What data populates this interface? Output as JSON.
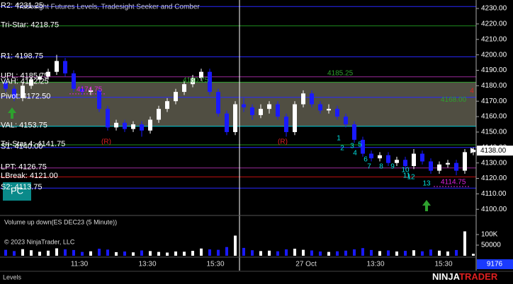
{
  "chart_data": {
    "type": "candlestick",
    "title": "Tradesight Futures Levels, Tradesight Seeker and Comber",
    "ylim": [
      4096,
      4235.5
    ],
    "yticks": [
      {
        "value": 4100,
        "label": "4100.00"
      },
      {
        "value": 4110,
        "label": "4110.00"
      },
      {
        "value": 4120,
        "label": "4120.00"
      },
      {
        "value": 4130,
        "label": "4130.00"
      },
      {
        "value": 4140,
        "label": "4140.00"
      },
      {
        "value": 4150,
        "label": "4150.00"
      },
      {
        "value": 4160,
        "label": "4160.00"
      },
      {
        "value": 4170,
        "label": "4170.00"
      },
      {
        "value": 4180,
        "label": "4180.00"
      },
      {
        "value": 4190,
        "label": "4190.00"
      },
      {
        "value": 4200,
        "label": "4200.00"
      },
      {
        "value": 4210,
        "label": "4210.00"
      },
      {
        "value": 4220,
        "label": "4220.00"
      },
      {
        "value": 4230,
        "label": "4230.00"
      }
    ],
    "xtick_labels": [
      "11:30",
      "13:30",
      "15:30",
      "27 Oct",
      "13:30",
      "15:30"
    ],
    "up_color": "#ffffff",
    "down_color": "#1a1aff",
    "open": [
      4182,
      4178,
      4172,
      4180,
      4184,
      4186,
      4189,
      4196,
      4188,
      4178,
      4176,
      4177,
      4165,
      4153,
      4156,
      4152,
      4155,
      4151,
      4158,
      4165,
      4170,
      4176,
      4181,
      4185,
      4189,
      4176,
      4162,
      4150,
      4168,
      4166,
      4161,
      4165,
      4168,
      4160,
      4150,
      4168,
      4175,
      4168,
      4164,
      4165,
      4160,
      4155,
      4145,
      4136,
      4133,
      4135,
      4130,
      4132,
      4128,
      4136,
      4131,
      4125,
      4129,
      4130,
      4125,
      4137
    ],
    "high": [
      4184,
      4180,
      4182,
      4186,
      4188,
      4191,
      4200,
      4198,
      4190,
      4180,
      4179,
      4179,
      4167,
      4158,
      4158,
      4157,
      4157,
      4160,
      4167,
      4172,
      4178,
      4183,
      4187,
      4191,
      4191,
      4178,
      4164,
      4170,
      4172,
      4168,
      4168,
      4170,
      4170,
      4162,
      4170,
      4177,
      4177,
      4170,
      4168,
      4167,
      4162,
      4157,
      4147,
      4138,
      4137,
      4137,
      4134,
      4134,
      4139,
      4138,
      4133,
      4131,
      4132,
      4132,
      4139,
      4140
    ],
    "low": [
      4176,
      4170,
      4170,
      4178,
      4182,
      4184,
      4187,
      4186,
      4176,
      4174,
      4174,
      4163,
      4151,
      4151,
      4150,
      4150,
      4147,
      4149,
      4156,
      4163,
      4168,
      4174,
      4179,
      4183,
      4174,
      4160,
      4148,
      4148,
      4163,
      4158,
      4159,
      4162,
      4158,
      4147,
      4148,
      4166,
      4166,
      4162,
      4162,
      4158,
      4153,
      4143,
      4134,
      4131,
      4131,
      4128,
      4128,
      4126,
      4126,
      4129,
      4123,
      4123,
      4127,
      4122,
      4123,
      4135
    ],
    "close": [
      4178,
      4172,
      4180,
      4184,
      4186,
      4189,
      4196,
      4188,
      4178,
      4176,
      4177,
      4165,
      4153,
      4156,
      4152,
      4155,
      4151,
      4158,
      4165,
      4170,
      4176,
      4181,
      4185,
      4189,
      4176,
      4162,
      4150,
      4168,
      4166,
      4161,
      4165,
      4168,
      4160,
      4150,
      4168,
      4175,
      4168,
      4164,
      4165,
      4160,
      4155,
      4145,
      4136,
      4133,
      4135,
      4130,
      4132,
      4128,
      4136,
      4131,
      4125,
      4129,
      4130,
      4125,
      4137,
      4138
    ],
    "last_price": {
      "value": 4138,
      "label": "4138.00"
    },
    "levels": [
      {
        "label": "R2: 4231.25",
        "value": 4231.25,
        "color": "#2828ff"
      },
      {
        "label": "Tri-Star: 4218.75",
        "value": 4218.75,
        "color": "#1e8c1e"
      },
      {
        "label": "R1: 4198.75",
        "value": 4198.75,
        "color": "#2828ff"
      },
      {
        "label": "UPL: 4185.75",
        "value": 4185.75,
        "color": "#9a2a9a"
      },
      {
        "label": "VAH: 4182.25",
        "value": 4182.25,
        "color": "#2ea02e"
      },
      {
        "label": "Pivot: 4172.50",
        "value": 4172.5,
        "color": "#2828ff"
      },
      {
        "label": "VAL: 4153.75",
        "value": 4153.75,
        "color": "#00c8d8"
      },
      {
        "label": "Tri-Star 4: 4141.75",
        "value": 4141.75,
        "color": "#1e8c1e"
      },
      {
        "label": "S1: 4140.00",
        "value": 4140,
        "color": "#2828ff"
      },
      {
        "label": "LPT: 4126.75",
        "value": 4126.75,
        "color": "#9a2a9a"
      },
      {
        "label": "LBreak: 4121.00",
        "value": 4121,
        "color": "#c01010"
      },
      {
        "label": "S2: 4113.75",
        "value": 4113.75,
        "color": "#2828ff"
      }
    ],
    "price_notes": [
      {
        "label": "4185.25",
        "value": 4185.25,
        "color": "#2ea02e"
      },
      {
        "label": "4180.75",
        "value": 4180.75,
        "color": "#2ea02e"
      },
      {
        "label": "4168.00",
        "value": 4168,
        "color": "#2ea02e"
      },
      {
        "label": "4174.75",
        "value": 4174.75,
        "color": "#e020e0"
      },
      {
        "label": "4114.75",
        "value": 4114.75,
        "color": "#e020e0"
      }
    ],
    "marks": [
      "(R)",
      "(R)",
      "4",
      "1",
      "2",
      "3",
      "4",
      "5",
      "6",
      "7",
      "8",
      "9",
      "10",
      "11",
      "12",
      "13"
    ],
    "mark_colors": [
      "#e02020",
      "#e02020",
      "#e02020",
      "#00e0e0",
      "#00e0e0",
      "#00e0e0",
      "#00e0e0",
      "#00e0e0",
      "#00e0e0",
      "#00e0e0",
      "#00e0e0",
      "#00e0e0",
      "#00e0e0",
      "#00e0e0",
      "#00e0e0",
      "#00e0e0"
    ],
    "volume": {
      "title": "Volume up down(ES DEC23 (5 Minute))",
      "values": [
        28000,
        22000,
        31000,
        26000,
        19000,
        24000,
        35000,
        30000,
        27000,
        18000,
        21000,
        33000,
        29000,
        17000,
        20000,
        16000,
        25000,
        22000,
        18000,
        15000,
        20000,
        19000,
        23000,
        34000,
        30000,
        28000,
        41000,
        95000,
        37000,
        26000,
        22000,
        24000,
        21000,
        30000,
        33000,
        28000,
        25000,
        20000,
        18000,
        21000,
        24000,
        30000,
        36000,
        27000,
        22000,
        25000,
        20000,
        23000,
        26000,
        21000,
        29000,
        24000,
        20000,
        27000,
        115000,
        9176
      ],
      "ylim": [
        0,
        180000
      ],
      "yticks": [
        50000,
        {
          "value": 100000,
          "label": "100K"
        }
      ],
      "last": 9176
    },
    "copyright": "© 2023 NinjaTrader, LLC",
    "badge": "PC",
    "tab": "Levels",
    "brand": [
      "NINJA",
      "TRADER"
    ]
  }
}
